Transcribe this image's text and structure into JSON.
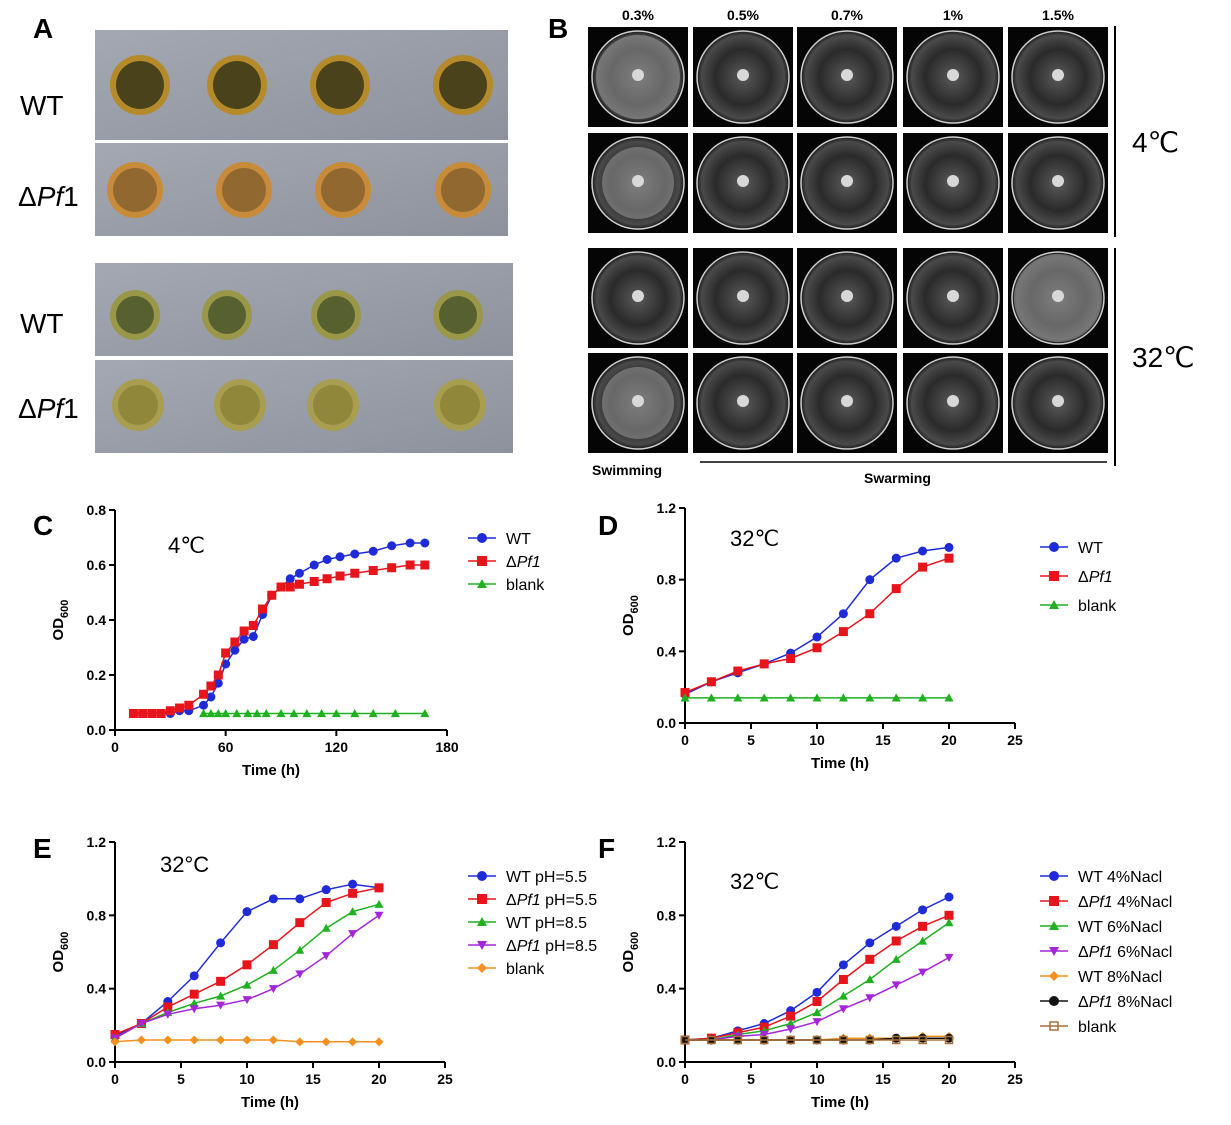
{
  "panels": {
    "A": {
      "letter": "A",
      "row_labels": [
        "WT",
        "ΔPf1",
        "WT",
        "ΔPf1"
      ]
    },
    "B": {
      "letter": "B",
      "concentrations": [
        "0.3%",
        "0.5%",
        "0.7%",
        "1%",
        "1.5%"
      ],
      "temp_top": "4℃",
      "temp_bottom": "32℃",
      "swimming_label": "Swimming",
      "swarming_label": "Swarming"
    }
  },
  "colors": {
    "blue": "#1f2bd8",
    "red": "#e8141b",
    "green": "#1fb11f",
    "purple": "#a526d9",
    "orange": "#f5901f",
    "black": "#111111",
    "brown": "#a8713a"
  },
  "chart_data": [
    {
      "id": "C",
      "letter": "C",
      "type": "line",
      "annotation": "4℃",
      "xlabel": "Time  (h)",
      "ylabel": "OD600",
      "xlim": [
        0,
        180
      ],
      "ylim": [
        0,
        0.8
      ],
      "xticks": [
        0,
        60,
        120,
        180
      ],
      "yticks": [
        0.0,
        0.2,
        0.4,
        0.6,
        0.8
      ],
      "ytick_labels": [
        "0.0",
        "0.2",
        "0.4",
        "0.6",
        "0.8"
      ],
      "series": [
        {
          "name": "WT",
          "color": "#1f2bd8",
          "marker": "circle",
          "x": [
            10,
            15,
            20,
            25,
            30,
            35,
            40,
            48,
            52,
            56,
            60,
            65,
            70,
            75,
            80,
            85,
            90,
            95,
            100,
            108,
            115,
            122,
            130,
            140,
            150,
            160,
            168
          ],
          "y": [
            0.06,
            0.06,
            0.06,
            0.06,
            0.06,
            0.07,
            0.07,
            0.09,
            0.12,
            0.17,
            0.24,
            0.29,
            0.33,
            0.34,
            0.42,
            0.49,
            0.52,
            0.55,
            0.57,
            0.6,
            0.62,
            0.63,
            0.64,
            0.65,
            0.67,
            0.68,
            0.68
          ]
        },
        {
          "name": "ΔPf1",
          "color": "#e8141b",
          "marker": "square",
          "x": [
            10,
            15,
            20,
            25,
            30,
            35,
            40,
            48,
            52,
            56,
            60,
            65,
            70,
            75,
            80,
            85,
            90,
            95,
            100,
            108,
            115,
            122,
            130,
            140,
            150,
            160,
            168
          ],
          "y": [
            0.06,
            0.06,
            0.06,
            0.06,
            0.07,
            0.08,
            0.09,
            0.13,
            0.16,
            0.2,
            0.28,
            0.32,
            0.36,
            0.38,
            0.44,
            0.49,
            0.52,
            0.52,
            0.53,
            0.54,
            0.55,
            0.56,
            0.57,
            0.58,
            0.59,
            0.6,
            0.6
          ]
        },
        {
          "name": "blank",
          "color": "#1fb11f",
          "marker": "triangle",
          "x": [
            48,
            52,
            56,
            60,
            66,
            72,
            77,
            82,
            90,
            97,
            104,
            112,
            120,
            130,
            140,
            152,
            168
          ],
          "y": [
            0.06,
            0.06,
            0.06,
            0.06,
            0.06,
            0.06,
            0.06,
            0.06,
            0.06,
            0.06,
            0.06,
            0.06,
            0.06,
            0.06,
            0.06,
            0.06,
            0.06
          ]
        }
      ]
    },
    {
      "id": "D",
      "letter": "D",
      "type": "line",
      "annotation": "32℃",
      "xlabel": "Time (h)",
      "ylabel": "OD600",
      "xlim": [
        0,
        25
      ],
      "ylim": [
        0,
        1.2
      ],
      "xticks": [
        0,
        5,
        10,
        15,
        20,
        25
      ],
      "yticks": [
        0.0,
        0.4,
        0.8,
        1.2
      ],
      "ytick_labels": [
        "0.0",
        "0.4",
        "0.8",
        "1.2"
      ],
      "series": [
        {
          "name": "WT",
          "color": "#1f2bd8",
          "marker": "circle",
          "x": [
            0,
            2,
            4,
            6,
            8,
            10,
            12,
            14,
            16,
            18,
            20
          ],
          "y": [
            0.16,
            0.23,
            0.28,
            0.33,
            0.39,
            0.48,
            0.61,
            0.8,
            0.92,
            0.96,
            0.98
          ]
        },
        {
          "name": "ΔPf1",
          "color": "#e8141b",
          "marker": "square",
          "x": [
            0,
            2,
            4,
            6,
            8,
            10,
            12,
            14,
            16,
            18,
            20
          ],
          "y": [
            0.17,
            0.23,
            0.29,
            0.33,
            0.36,
            0.42,
            0.51,
            0.61,
            0.75,
            0.87,
            0.92
          ]
        },
        {
          "name": "blank",
          "color": "#1fb11f",
          "marker": "triangle",
          "x": [
            0,
            2,
            4,
            6,
            8,
            10,
            12,
            14,
            16,
            18,
            20
          ],
          "y": [
            0.14,
            0.14,
            0.14,
            0.14,
            0.14,
            0.14,
            0.14,
            0.14,
            0.14,
            0.14,
            0.14
          ]
        }
      ]
    },
    {
      "id": "E",
      "letter": "E",
      "type": "line",
      "annotation": "32°C",
      "xlabel": "Time (h)",
      "ylabel": "OD600",
      "xlim": [
        0,
        25
      ],
      "ylim": [
        0,
        1.2
      ],
      "xticks": [
        0,
        5,
        10,
        15,
        20,
        25
      ],
      "yticks": [
        0.0,
        0.4,
        0.8,
        1.2
      ],
      "ytick_labels": [
        "0.0",
        "0.4",
        "0.8",
        "1.2"
      ],
      "series": [
        {
          "name": "WT  pH=5.5",
          "color": "#1f2bd8",
          "marker": "circle",
          "x": [
            0,
            2,
            4,
            6,
            8,
            10,
            12,
            14,
            16,
            18,
            20
          ],
          "y": [
            0.14,
            0.21,
            0.33,
            0.47,
            0.65,
            0.82,
            0.89,
            0.89,
            0.94,
            0.97,
            0.95
          ]
        },
        {
          "name": "ΔPf1  pH=5.5",
          "color": "#e8141b",
          "marker": "square",
          "x": [
            0,
            2,
            4,
            6,
            8,
            10,
            12,
            14,
            16,
            18,
            20
          ],
          "y": [
            0.15,
            0.21,
            0.3,
            0.37,
            0.44,
            0.53,
            0.64,
            0.76,
            0.87,
            0.92,
            0.95
          ]
        },
        {
          "name": "WT  pH=8.5",
          "color": "#1fb11f",
          "marker": "triangle",
          "x": [
            0,
            2,
            4,
            6,
            8,
            10,
            12,
            14,
            16,
            18,
            20
          ],
          "y": [
            0.13,
            0.21,
            0.27,
            0.32,
            0.36,
            0.42,
            0.5,
            0.61,
            0.73,
            0.82,
            0.86
          ]
        },
        {
          "name": "ΔPf1  pH=8.5",
          "color": "#a526d9",
          "marker": "triangle-down",
          "x": [
            0,
            2,
            4,
            6,
            8,
            10,
            12,
            14,
            16,
            18,
            20
          ],
          "y": [
            0.13,
            0.21,
            0.26,
            0.29,
            0.31,
            0.34,
            0.4,
            0.48,
            0.58,
            0.7,
            0.8
          ]
        },
        {
          "name": "blank",
          "color": "#f5901f",
          "marker": "diamond",
          "x": [
            0,
            2,
            4,
            6,
            8,
            10,
            12,
            14,
            16,
            18,
            20
          ],
          "y": [
            0.11,
            0.12,
            0.12,
            0.12,
            0.12,
            0.12,
            0.12,
            0.11,
            0.11,
            0.11,
            0.11
          ]
        }
      ]
    },
    {
      "id": "F",
      "letter": "F",
      "type": "line",
      "annotation": "32℃",
      "xlabel": "Time (h)",
      "ylabel": "OD600",
      "xlim": [
        0,
        25
      ],
      "ylim": [
        0,
        1.2
      ],
      "xticks": [
        0,
        5,
        10,
        15,
        20,
        25
      ],
      "yticks": [
        0.0,
        0.4,
        0.8,
        1.2
      ],
      "ytick_labels": [
        "0.0",
        "0.4",
        "0.8",
        "1.2"
      ],
      "series": [
        {
          "name": "WT  4%Nacl",
          "color": "#1f2bd8",
          "marker": "circle",
          "x": [
            0,
            2,
            4,
            6,
            8,
            10,
            12,
            14,
            16,
            18,
            20
          ],
          "y": [
            0.12,
            0.13,
            0.17,
            0.21,
            0.28,
            0.38,
            0.53,
            0.65,
            0.74,
            0.83,
            0.9
          ]
        },
        {
          "name": "ΔPf1  4%Nacl",
          "color": "#e8141b",
          "marker": "square",
          "x": [
            0,
            2,
            4,
            6,
            8,
            10,
            12,
            14,
            16,
            18,
            20
          ],
          "y": [
            0.12,
            0.13,
            0.16,
            0.19,
            0.25,
            0.33,
            0.45,
            0.56,
            0.66,
            0.74,
            0.8
          ]
        },
        {
          "name": "WT  6%Nacl",
          "color": "#1fb11f",
          "marker": "triangle",
          "x": [
            0,
            2,
            4,
            6,
            8,
            10,
            12,
            14,
            16,
            18,
            20
          ],
          "y": [
            0.12,
            0.12,
            0.15,
            0.17,
            0.21,
            0.27,
            0.36,
            0.45,
            0.56,
            0.66,
            0.76
          ]
        },
        {
          "name": "ΔPf1  6%Nacl",
          "color": "#a526d9",
          "marker": "triangle-down",
          "x": [
            0,
            2,
            4,
            6,
            8,
            10,
            12,
            14,
            16,
            18,
            20
          ],
          "y": [
            0.12,
            0.12,
            0.14,
            0.15,
            0.18,
            0.22,
            0.29,
            0.35,
            0.42,
            0.49,
            0.57
          ]
        },
        {
          "name": "WT  8%Nacl",
          "color": "#f5901f",
          "marker": "diamond",
          "x": [
            0,
            2,
            4,
            6,
            8,
            10,
            12,
            14,
            16,
            18,
            20
          ],
          "y": [
            0.12,
            0.12,
            0.12,
            0.12,
            0.12,
            0.12,
            0.13,
            0.13,
            0.13,
            0.14,
            0.14
          ]
        },
        {
          "name": "ΔPf1  8%Nacl",
          "color": "#111111",
          "marker": "circle",
          "x": [
            0,
            2,
            4,
            6,
            8,
            10,
            12,
            14,
            16,
            18,
            20
          ],
          "y": [
            0.12,
            0.12,
            0.12,
            0.12,
            0.12,
            0.12,
            0.12,
            0.12,
            0.13,
            0.13,
            0.13
          ]
        },
        {
          "name": "blank",
          "color": "#a8713a",
          "marker": "square-open",
          "x": [
            0,
            2,
            4,
            6,
            8,
            10,
            12,
            14,
            16,
            18,
            20
          ],
          "y": [
            0.12,
            0.12,
            0.12,
            0.12,
            0.12,
            0.12,
            0.12,
            0.12,
            0.12,
            0.12,
            0.12
          ]
        }
      ]
    }
  ]
}
